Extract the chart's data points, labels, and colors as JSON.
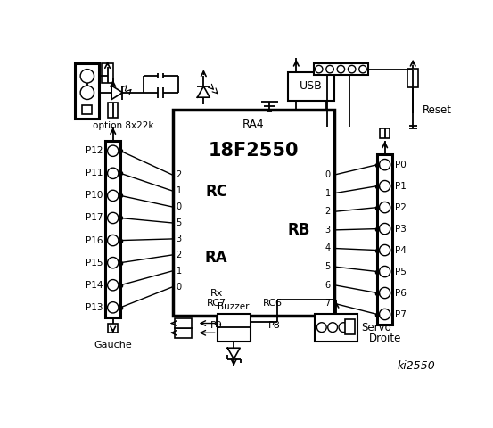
{
  "bg_color": "#ffffff",
  "line_color": "#000000",
  "chip_label": "18F2550",
  "chip_label2": "RA4",
  "rc_label": "RC",
  "ra_label": "RA",
  "rb_label": "RB",
  "rc7_label": "RC7",
  "rc6_label": "RC6",
  "rx_label": "Rx",
  "left_pins": [
    "P12",
    "P11",
    "P10",
    "P17",
    "P16",
    "P15",
    "P14",
    "P13"
  ],
  "right_pins": [
    "P0",
    "P1",
    "P2",
    "P3",
    "P4",
    "P5",
    "P6",
    "P7"
  ],
  "left_rc_pins": [
    "2",
    "1",
    "0",
    "5",
    "3",
    "2",
    "1",
    "0"
  ],
  "right_rb_pins": [
    "0",
    "1",
    "2",
    "3",
    "4",
    "5",
    "6",
    "7"
  ],
  "gauche_label": "Gauche",
  "droite_label": "Droite",
  "usb_label": "USB",
  "reset_label": "Reset",
  "servo_label": "Servo",
  "buzzer_label": "Buzzer",
  "p8_label": "P8",
  "p9_label": "P9",
  "option_label": "option 8x22k",
  "ki_label": "ki2550"
}
